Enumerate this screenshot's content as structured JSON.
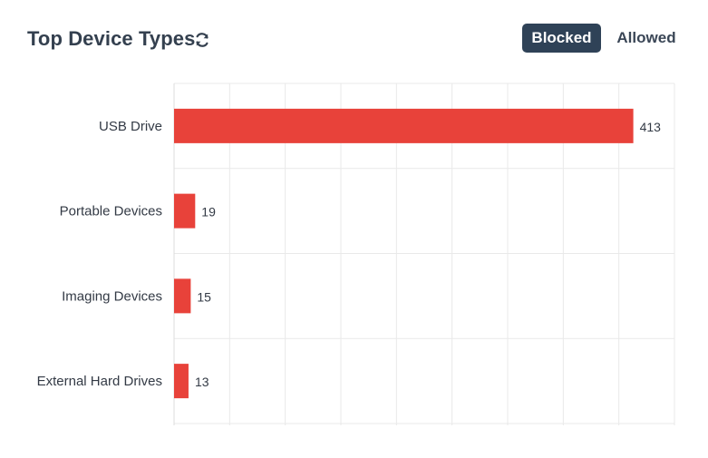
{
  "header": {
    "title": "Top Device Types",
    "refresh_icon": "refresh-icon",
    "toggle_blocked": "Blocked",
    "toggle_allowed": "Allowed",
    "active_toggle": "Blocked"
  },
  "colors": {
    "bar": "#e8423a",
    "active_toggle_bg": "#2f4257",
    "grid": "#e9e9e9",
    "text": "#333a45"
  },
  "chart_data": {
    "type": "bar",
    "orientation": "horizontal",
    "categories": [
      "USB Drive",
      "Portable Devices",
      "Imaging Devices",
      "External Hard Drives"
    ],
    "values": [
      413,
      19,
      15,
      13
    ],
    "xlim": [
      0,
      450
    ],
    "grid": true,
    "data_labels": true
  }
}
